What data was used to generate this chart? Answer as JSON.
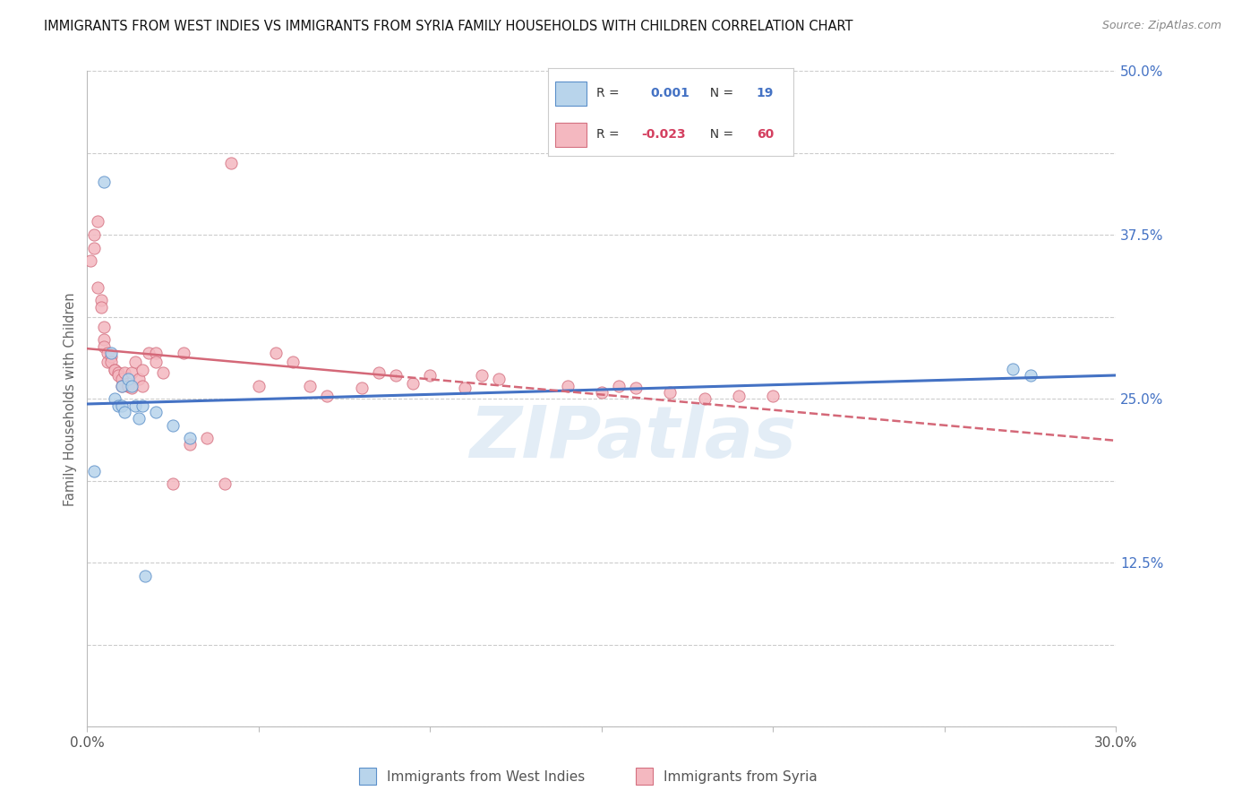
{
  "title": "IMMIGRANTS FROM WEST INDIES VS IMMIGRANTS FROM SYRIA FAMILY HOUSEHOLDS WITH CHILDREN CORRELATION CHART",
  "source": "Source: ZipAtlas.com",
  "ylabel": "Family Households with Children",
  "xlim": [
    0.0,
    0.3
  ],
  "ylim": [
    0.0,
    0.5
  ],
  "watermark": "ZIPatlas",
  "color_blue": "#b8d4eb",
  "color_pink": "#f4b8c0",
  "color_blue_edge": "#5b8fc9",
  "color_pink_edge": "#d47080",
  "color_blue_text": "#4472c4",
  "color_pink_text": "#d44060",
  "trendline_blue": "#4472c4",
  "trendline_pink": "#d46878",
  "west_indies_x": [
    0.002,
    0.005,
    0.007,
    0.008,
    0.009,
    0.01,
    0.01,
    0.011,
    0.012,
    0.013,
    0.014,
    0.015,
    0.016,
    0.017,
    0.02,
    0.025,
    0.03,
    0.27,
    0.275
  ],
  "west_indies_y": [
    0.195,
    0.415,
    0.285,
    0.25,
    0.245,
    0.26,
    0.245,
    0.24,
    0.265,
    0.26,
    0.245,
    0.235,
    0.245,
    0.115,
    0.24,
    0.23,
    0.22,
    0.273,
    0.268
  ],
  "syria_x": [
    0.001,
    0.002,
    0.002,
    0.003,
    0.003,
    0.004,
    0.004,
    0.005,
    0.005,
    0.005,
    0.006,
    0.006,
    0.007,
    0.007,
    0.008,
    0.008,
    0.009,
    0.009,
    0.01,
    0.01,
    0.011,
    0.012,
    0.012,
    0.013,
    0.013,
    0.014,
    0.015,
    0.016,
    0.016,
    0.018,
    0.02,
    0.02,
    0.022,
    0.025,
    0.028,
    0.03,
    0.035,
    0.04,
    0.042,
    0.05,
    0.055,
    0.06,
    0.065,
    0.07,
    0.08,
    0.085,
    0.09,
    0.095,
    0.1,
    0.11,
    0.115,
    0.12,
    0.14,
    0.15,
    0.155,
    0.16,
    0.17,
    0.18,
    0.19,
    0.2
  ],
  "syria_y": [
    0.355,
    0.365,
    0.375,
    0.385,
    0.335,
    0.325,
    0.32,
    0.305,
    0.295,
    0.29,
    0.285,
    0.278,
    0.282,
    0.278,
    0.272,
    0.272,
    0.27,
    0.268,
    0.265,
    0.26,
    0.27,
    0.26,
    0.26,
    0.27,
    0.258,
    0.278,
    0.265,
    0.272,
    0.26,
    0.285,
    0.285,
    0.278,
    0.27,
    0.185,
    0.285,
    0.215,
    0.22,
    0.185,
    0.43,
    0.26,
    0.285,
    0.278,
    0.26,
    0.252,
    0.258,
    0.27,
    0.268,
    0.262,
    0.268,
    0.258,
    0.268,
    0.265,
    0.26,
    0.255,
    0.26,
    0.258,
    0.255,
    0.25,
    0.252,
    0.252
  ]
}
